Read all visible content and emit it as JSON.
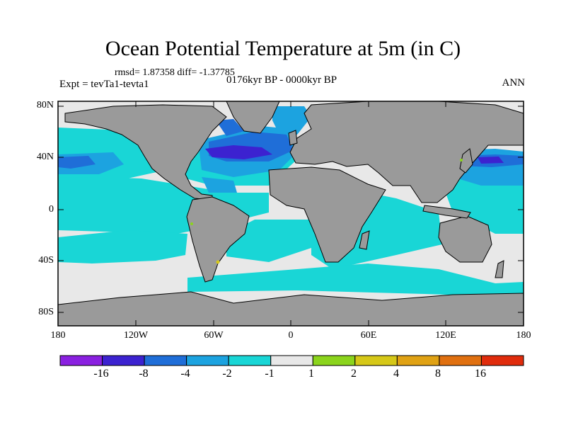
{
  "title": "Ocean Potential Temperature at 5m (in C)",
  "stats": "rmsd= 1.87358 diff= -1.37785",
  "experiment": "Expt = tevTa1-tevta1",
  "period": "0176kyr BP - 0000kyr BP",
  "season": "ANN",
  "lat_ticks": [
    "80N",
    "40N",
    "0",
    "40S",
    "80S"
  ],
  "lon_ticks": [
    "180",
    "120W",
    "60W",
    "0",
    "60E",
    "120E",
    "180"
  ],
  "colorbar": {
    "labels": [
      "-16",
      "-8",
      "-4",
      "-2",
      "-1",
      "1",
      "2",
      "4",
      "8",
      "16"
    ],
    "colors": [
      "#8a20e0",
      "#3c22d0",
      "#1f6ed8",
      "#1ca3e0",
      "#19d6d6",
      "#e8e8e8",
      "#8bd41c",
      "#d6c818",
      "#e0a214",
      "#e07010",
      "#e02c0c"
    ]
  },
  "colors": {
    "land": "#9a9a9a",
    "ocean_neutral": "#e8e8e8",
    "cyan": "#19d6d6",
    "light_blue": "#1ca3e0",
    "blue": "#1f6ed8",
    "dark_blue": "#3c22d0"
  }
}
